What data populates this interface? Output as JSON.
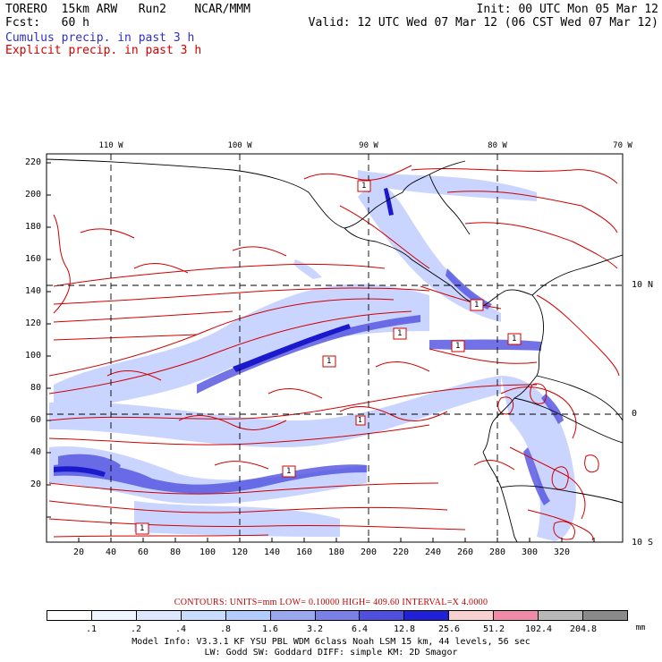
{
  "header": {
    "left_line1": "TORERO  15km ARW   Run2    NCAR/MMM",
    "left_line2": "Fcst:   60 h",
    "right_line1": "Init: 00 UTC Mon 05 Mar 12",
    "right_line2": "Valid: 12 UTC Wed 07 Mar 12 (06 CST Wed 07 Mar 12)",
    "cumulus_label": "Cumulus precip. in past 3 h",
    "explicit_label": "Explicit precip. in past 3 h",
    "cumulus_color": "#3030c0",
    "explicit_color": "#d00000"
  },
  "map": {
    "x_ticks": [
      "20",
      "40",
      "60",
      "80",
      "100",
      "120",
      "140",
      "160",
      "180",
      "200",
      "220",
      "240",
      "260",
      "280",
      "300",
      "320"
    ],
    "y_ticks": [
      "220",
      "200",
      "180",
      "160",
      "140",
      "120",
      "100",
      "80",
      "60",
      "40",
      "20"
    ],
    "lon_labels": [
      "110 W",
      "100 W",
      "90 W",
      "80 W",
      "70 W"
    ],
    "lat_labels": [
      "10 N",
      "0",
      "10 S"
    ],
    "box_labels": [
      "1",
      "1",
      "1",
      "1",
      "1",
      "1",
      "1",
      "1",
      "1"
    ]
  },
  "legend": {
    "colors": [
      "#ffffff",
      "#f0f6ff",
      "#dde8ff",
      "#c8dcff",
      "#b3ccff",
      "#9aa8f0",
      "#7a80e8",
      "#5050e0",
      "#2020d8",
      "#f8d0d0",
      "#f08aa8",
      "#b8b8b8",
      "#8a8a8a",
      "#d8a8f0"
    ],
    "labels": [
      ".1",
      ".2",
      ".4",
      ".8",
      "1.6",
      "3.2",
      "6.4",
      "12.8",
      "25.6",
      "51.2",
      "102.4",
      "204.8"
    ],
    "unit": "mm"
  },
  "contours_text": "CONTOURS:  UNITS=mm  LOW= 0.10000        HIGH=  409.60       INTERVAL=X  4.0000",
  "model_info": {
    "line1": "Model Info: V3.3.1     KF     YSU PBL   WDM 6class  Noah LSM  15 km,    44 levels,    56 sec",
    "line2": "LW: Godd SW: Goddard DIFF: simple KM: 2D Smagor"
  }
}
